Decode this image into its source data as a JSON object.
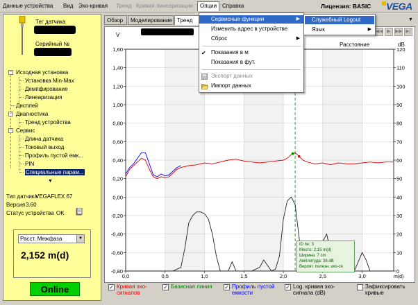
{
  "menubar": {
    "items": [
      {
        "label": "Данные устройства",
        "disabled": false
      },
      {
        "label": "Вид",
        "disabled": false
      },
      {
        "label": "Эхо-кривая",
        "disabled": false
      },
      {
        "label": "Тренд",
        "disabled": true
      },
      {
        "label": "Кривая линеаризации",
        "disabled": true
      },
      {
        "label": "Опции",
        "disabled": false,
        "open": true
      },
      {
        "label": "Справка",
        "disabled": false
      }
    ],
    "license": "Лицензия: BASIC",
    "logo": "VEGA"
  },
  "left_panel": {
    "tag_label": "Тег датчика",
    "serial_label": "Серийный №",
    "tree": [
      {
        "label": "Исходная установка",
        "level": 0,
        "expanded": true
      },
      {
        "label": "Установка Min-Max",
        "level": 1
      },
      {
        "label": "Демпфирование",
        "level": 1
      },
      {
        "label": "Линеаризация",
        "level": 1
      },
      {
        "label": "Дисплей",
        "level": 0
      },
      {
        "label": "Диагностика",
        "level": 0,
        "expanded": true
      },
      {
        "label": "Тренд устройства",
        "level": 1
      },
      {
        "label": "Сервис",
        "level": 0,
        "expanded": true
      },
      {
        "label": "Длина датчика",
        "level": 1
      },
      {
        "label": "Токовый выход",
        "level": 1
      },
      {
        "label": "Профиль пустой емк...",
        "level": 1
      },
      {
        "label": "PIN",
        "level": 1
      },
      {
        "label": "Специальные парам...",
        "level": 1,
        "selected": true
      }
    ],
    "device_type_label": "Тип датчика",
    "device_type": "VEGAFLEX 67",
    "version_label": "Версия",
    "version": "3.60",
    "status_label": "Статус устройства",
    "status": "OK",
    "measure_select": "Расст. Межфаза",
    "measured_value": "2,152 m(d)",
    "online": "Online"
  },
  "tabs": [
    {
      "label": "Обзор",
      "active": false
    },
    {
      "label": "Моделирование",
      "active": false
    },
    {
      "label": "Тренд",
      "active": true
    }
  ],
  "options_menu": {
    "items": [
      {
        "label": "Сервисные функции",
        "highlight": true,
        "submenu": true
      },
      {
        "label": "Изменить адрес в устройстве",
        "submenu": false
      },
      {
        "label": "Сброс",
        "submenu": true
      },
      {
        "label": "Показания в м",
        "checked": true
      },
      {
        "label": "Показания в фут.",
        "checked": false
      },
      {
        "label": "Экспорт данных",
        "disabled": true,
        "icon": "save-icon"
      },
      {
        "label": "Импорт данных",
        "disabled": false,
        "icon": "folder-open-icon"
      }
    ]
  },
  "service_submenu": {
    "items": [
      {
        "label": "Служебный Logout",
        "highlight": true
      },
      {
        "label": "Язык",
        "submenu": true
      }
    ]
  },
  "chart": {
    "left_unit": "V",
    "right_unit": "dB",
    "x_unit": "m(d)",
    "header_label": "Расстояние",
    "marker_box": [
      "ID №:       3",
      "Место:      2,15 m(d)",
      "Ширина:     7 cm",
      "Амплитуда:  38 dB",
      "Вероят. полезн. эхо-ся"
    ]
  },
  "chart_data": {
    "type": "line",
    "xlim": [
      0,
      3.4
    ],
    "ylim_left": [
      -0.8,
      1.6
    ],
    "ylim_right": [
      0,
      120
    ],
    "x_ticks": [
      "0,0",
      "0,5",
      "1,0",
      "1,5",
      "2,0",
      "2,5",
      "3,0"
    ],
    "x_tick_values": [
      0,
      0.5,
      1.0,
      1.5,
      2.0,
      2.5,
      3.0
    ],
    "y_left_ticks": [
      "1,60",
      "1,40",
      "1,20",
      "1,00",
      "0,80",
      "0,60",
      "0,40",
      "0,20",
      "0,00",
      "-0,20",
      "-0,40",
      "-0,60",
      "-0,80"
    ],
    "y_left_tick_values": [
      1.6,
      1.4,
      1.2,
      1.0,
      0.8,
      0.6,
      0.4,
      0.2,
      0.0,
      -0.2,
      -0.4,
      -0.6,
      -0.8
    ],
    "y_right_ticks": [
      "120",
      "110",
      "100",
      "90",
      "80",
      "70",
      "60",
      "50",
      "40",
      "30",
      "20",
      "10",
      "0"
    ],
    "y_right_tick_values": [
      120,
      110,
      100,
      90,
      80,
      70,
      60,
      50,
      40,
      30,
      20,
      10,
      0
    ],
    "marker_x": 2.15,
    "series": [
      {
        "name": "Кривая эхо-сигналов",
        "color": "#e00000",
        "axis": "left",
        "x": [
          0.0,
          0.05,
          0.1,
          0.15,
          0.2,
          0.25,
          0.3,
          0.35,
          0.4,
          0.45,
          0.5,
          0.55,
          0.6,
          0.65,
          0.7,
          0.8,
          0.9,
          1.0,
          1.1,
          1.2,
          1.3,
          1.4,
          1.5,
          1.6,
          1.7,
          1.8,
          1.9,
          2.0,
          2.05,
          2.1,
          2.15,
          2.2,
          2.25,
          2.3,
          2.4,
          2.5,
          2.6,
          2.7,
          2.8,
          2.9,
          3.0,
          3.1,
          3.2,
          3.3,
          3.4
        ],
        "y": [
          0.22,
          0.3,
          0.34,
          0.38,
          0.42,
          0.4,
          0.3,
          0.22,
          0.2,
          0.22,
          0.21,
          0.22,
          0.26,
          0.3,
          0.32,
          0.34,
          0.35,
          0.37,
          0.36,
          0.38,
          0.4,
          0.41,
          0.39,
          0.38,
          0.37,
          0.38,
          0.39,
          0.4,
          0.42,
          0.46,
          0.48,
          0.44,
          0.4,
          0.38,
          0.36,
          0.37,
          0.35,
          0.37,
          0.36,
          0.36,
          0.37,
          0.38,
          0.37,
          0.38,
          0.38
        ]
      },
      {
        "name": "Профиль пустой емкости",
        "color": "#0000ff",
        "axis": "left",
        "x": [
          0.0,
          0.05,
          0.1,
          0.15,
          0.2,
          0.25,
          0.3,
          0.35,
          0.4,
          0.45,
          0.5,
          0.55,
          0.6,
          0.65,
          0.7
        ],
        "y": [
          0.25,
          0.32,
          0.36,
          0.42,
          0.48,
          0.48,
          0.36,
          0.24,
          0.22,
          0.25,
          0.23,
          0.24,
          0.28,
          0.32,
          0.34
        ]
      },
      {
        "name": "Log. кривая эхо-сигнала (dB)",
        "color": "#202020",
        "axis": "right",
        "x": [
          0.0,
          0.6,
          0.7,
          0.75,
          0.8,
          0.85,
          0.9,
          0.95,
          1.0,
          1.05,
          1.1,
          1.15,
          1.2,
          1.3,
          1.35,
          1.4,
          1.5,
          1.6,
          1.7,
          1.75,
          1.8,
          1.85,
          1.9,
          1.95,
          2.0,
          2.05,
          2.1,
          2.15,
          2.2,
          2.25,
          2.3,
          2.4,
          2.45,
          2.5,
          2.55,
          2.6,
          2.7,
          2.8,
          2.9,
          2.95,
          3.0,
          3.05,
          3.1,
          3.2,
          3.3,
          3.4
        ],
        "y": [
          0,
          0,
          2,
          12,
          26,
          30,
          32,
          32,
          31,
          28,
          20,
          8,
          0,
          0,
          5,
          0,
          0,
          0,
          2,
          6,
          3,
          0,
          1,
          8,
          28,
          38,
          40,
          36,
          18,
          2,
          0,
          0,
          4,
          16,
          20,
          10,
          0,
          2,
          0,
          5,
          10,
          6,
          0,
          0,
          0,
          0
        ]
      }
    ]
  },
  "legend": [
    {
      "label": "Кривая эхо-сигналов",
      "checked": true,
      "color": "#e00000"
    },
    {
      "label": "Базисная линия",
      "checked": true,
      "color": "#008000"
    },
    {
      "label": "Профиль пустой емкости",
      "checked": true,
      "color": "#0000ff"
    },
    {
      "label": "Log. кривая эхо-сигнала (dB)",
      "checked": true,
      "color": "#000000"
    },
    {
      "label": "Зафиксировать кривые",
      "checked": false,
      "color": "#000000"
    }
  ]
}
